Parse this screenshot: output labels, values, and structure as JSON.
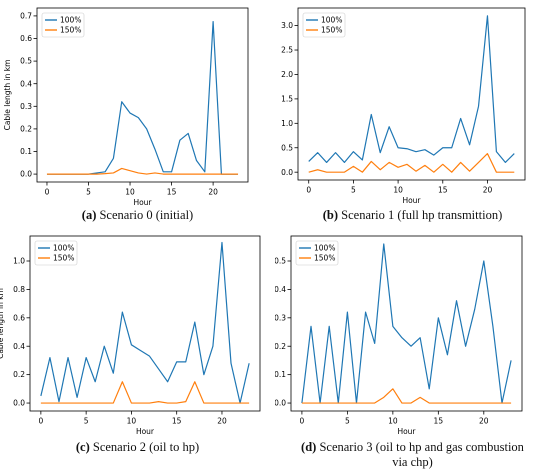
{
  "colors": {
    "series_100": "#1f77b4",
    "series_150": "#ff7f0e",
    "axis": "#000000"
  },
  "chart_data": [
    {
      "type": "line",
      "caption_label": "(a)",
      "caption_text": " Scenario 0 (initial)",
      "xlabel": "Hour",
      "ylabel": "Cable length in km",
      "xlim": [
        -1.2,
        24.2
      ],
      "ylim": [
        -0.035,
        0.735
      ],
      "xticks": [
        0,
        5,
        10,
        15,
        20
      ],
      "yticks": [
        0.0,
        0.1,
        0.2,
        0.3,
        0.4,
        0.5,
        0.6,
        0.7
      ],
      "ytick_labels": [
        "0.0",
        "0.1",
        "0.2",
        "0.3",
        "0.4",
        "0.5",
        "0.6",
        "0.7"
      ],
      "legend": "top-left",
      "x": [
        0,
        1,
        2,
        3,
        4,
        5,
        6,
        7,
        8,
        9,
        10,
        11,
        12,
        13,
        14,
        15,
        16,
        17,
        18,
        19,
        20,
        21,
        22,
        23
      ],
      "series": [
        {
          "name": "100%",
          "values": [
            0,
            0,
            0,
            0,
            0,
            0,
            0.005,
            0.01,
            0.07,
            0.32,
            0.27,
            0.25,
            0.2,
            0.11,
            0.01,
            0.01,
            0.15,
            0.18,
            0.06,
            0.01,
            0.675,
            0,
            0,
            0
          ]
        },
        {
          "name": "150%",
          "values": [
            0,
            0,
            0,
            0,
            0,
            0,
            0,
            0.002,
            0.005,
            0.025,
            0.015,
            0.005,
            0,
            0.005,
            0,
            0,
            0,
            0,
            0,
            0,
            0,
            0,
            0,
            0
          ]
        }
      ]
    },
    {
      "type": "line",
      "caption_label": "(b)",
      "caption_text": " Scenario 1 (full hp transmittion)",
      "xlabel": "Hour",
      "ylabel": "Cable length in km",
      "xlim": [
        -1.2,
        24.2
      ],
      "ylim": [
        -0.16,
        3.36
      ],
      "xticks": [
        0,
        5,
        10,
        15,
        20
      ],
      "yticks": [
        0.0,
        0.5,
        1.0,
        1.5,
        2.0,
        2.5,
        3.0
      ],
      "ytick_labels": [
        "0.0",
        "0.5",
        "1.0",
        "1.5",
        "2.0",
        "2.5",
        "3.0"
      ],
      "legend": "top-left",
      "x": [
        0,
        1,
        2,
        3,
        4,
        5,
        6,
        7,
        8,
        9,
        10,
        11,
        12,
        13,
        14,
        15,
        16,
        17,
        18,
        19,
        20,
        21,
        22,
        23
      ],
      "series": [
        {
          "name": "100%",
          "values": [
            0.22,
            0.4,
            0.2,
            0.4,
            0.2,
            0.42,
            0.25,
            1.18,
            0.4,
            0.93,
            0.5,
            0.48,
            0.42,
            0.46,
            0.35,
            0.5,
            0.5,
            1.1,
            0.56,
            1.35,
            3.2,
            0.42,
            0.2,
            0.38
          ]
        },
        {
          "name": "150%",
          "values": [
            0,
            0.05,
            0,
            0,
            0,
            0.12,
            0,
            0.22,
            0.05,
            0.2,
            0.1,
            0.16,
            0.02,
            0.14,
            0,
            0.16,
            0,
            0.2,
            0.02,
            0.2,
            0.38,
            0,
            0,
            0
          ]
        }
      ]
    },
    {
      "type": "line",
      "caption_label": "(c)",
      "caption_text": " Scenario 2 (oil to hp)",
      "xlabel": "Hour",
      "ylabel": "Cable length in km",
      "xlim": [
        -1.2,
        24.2
      ],
      "ylim": [
        -0.056,
        1.176
      ],
      "xticks": [
        0,
        5,
        10,
        15,
        20
      ],
      "yticks": [
        0.0,
        0.2,
        0.4,
        0.6,
        0.8,
        1.0
      ],
      "ytick_labels": [
        "0.0",
        "0.2",
        "0.4",
        "0.6",
        "0.8",
        "1.0"
      ],
      "legend": "top-left",
      "x": [
        0,
        1,
        2,
        3,
        4,
        5,
        6,
        7,
        8,
        9,
        10,
        11,
        12,
        13,
        14,
        15,
        16,
        17,
        18,
        19,
        20,
        21,
        22,
        23
      ],
      "series": [
        {
          "name": "100%",
          "values": [
            0.05,
            0.32,
            0.01,
            0.32,
            0.04,
            0.32,
            0.15,
            0.4,
            0.21,
            0.64,
            0.41,
            0.37,
            0.33,
            0.24,
            0.15,
            0.29,
            0.29,
            0.57,
            0.2,
            0.4,
            1.13,
            0.28,
            0,
            0.28
          ]
        },
        {
          "name": "150%",
          "values": [
            0,
            0,
            0,
            0,
            0,
            0,
            0,
            0,
            0,
            0.15,
            0,
            0,
            0,
            0.01,
            0,
            0,
            0.01,
            0.15,
            0,
            0,
            0,
            0,
            0,
            0
          ]
        }
      ]
    },
    {
      "type": "line",
      "caption_label": "(d)",
      "caption_text": " Scenario 3 (oil to hp and gas combustion",
      "caption_text2": "via chp)",
      "xlabel": "Hour",
      "ylabel": "Cable length in km",
      "xlim": [
        -1.2,
        24.2
      ],
      "ylim": [
        -0.028,
        0.588
      ],
      "xticks": [
        0,
        5,
        10,
        15,
        20
      ],
      "yticks": [
        0.0,
        0.1,
        0.2,
        0.3,
        0.4,
        0.5
      ],
      "ytick_labels": [
        "0.0",
        "0.1",
        "0.2",
        "0.3",
        "0.4",
        "0.5"
      ],
      "legend": "top-left",
      "x": [
        0,
        1,
        2,
        3,
        4,
        5,
        6,
        7,
        8,
        9,
        10,
        11,
        12,
        13,
        14,
        15,
        16,
        17,
        18,
        19,
        20,
        21,
        22,
        23
      ],
      "series": [
        {
          "name": "100%",
          "values": [
            0,
            0.27,
            0,
            0.27,
            0,
            0.32,
            0,
            0.32,
            0.21,
            0.56,
            0.27,
            0.23,
            0.2,
            0.23,
            0.05,
            0.3,
            0.17,
            0.36,
            0.2,
            0.33,
            0.5,
            0.27,
            0,
            0.15
          ]
        },
        {
          "name": "150%",
          "values": [
            0,
            0,
            0,
            0,
            0,
            0,
            0,
            0,
            0,
            0.02,
            0.05,
            0,
            0,
            0.02,
            0,
            0,
            0,
            0,
            0,
            0,
            0,
            0,
            0,
            0
          ]
        }
      ]
    }
  ]
}
